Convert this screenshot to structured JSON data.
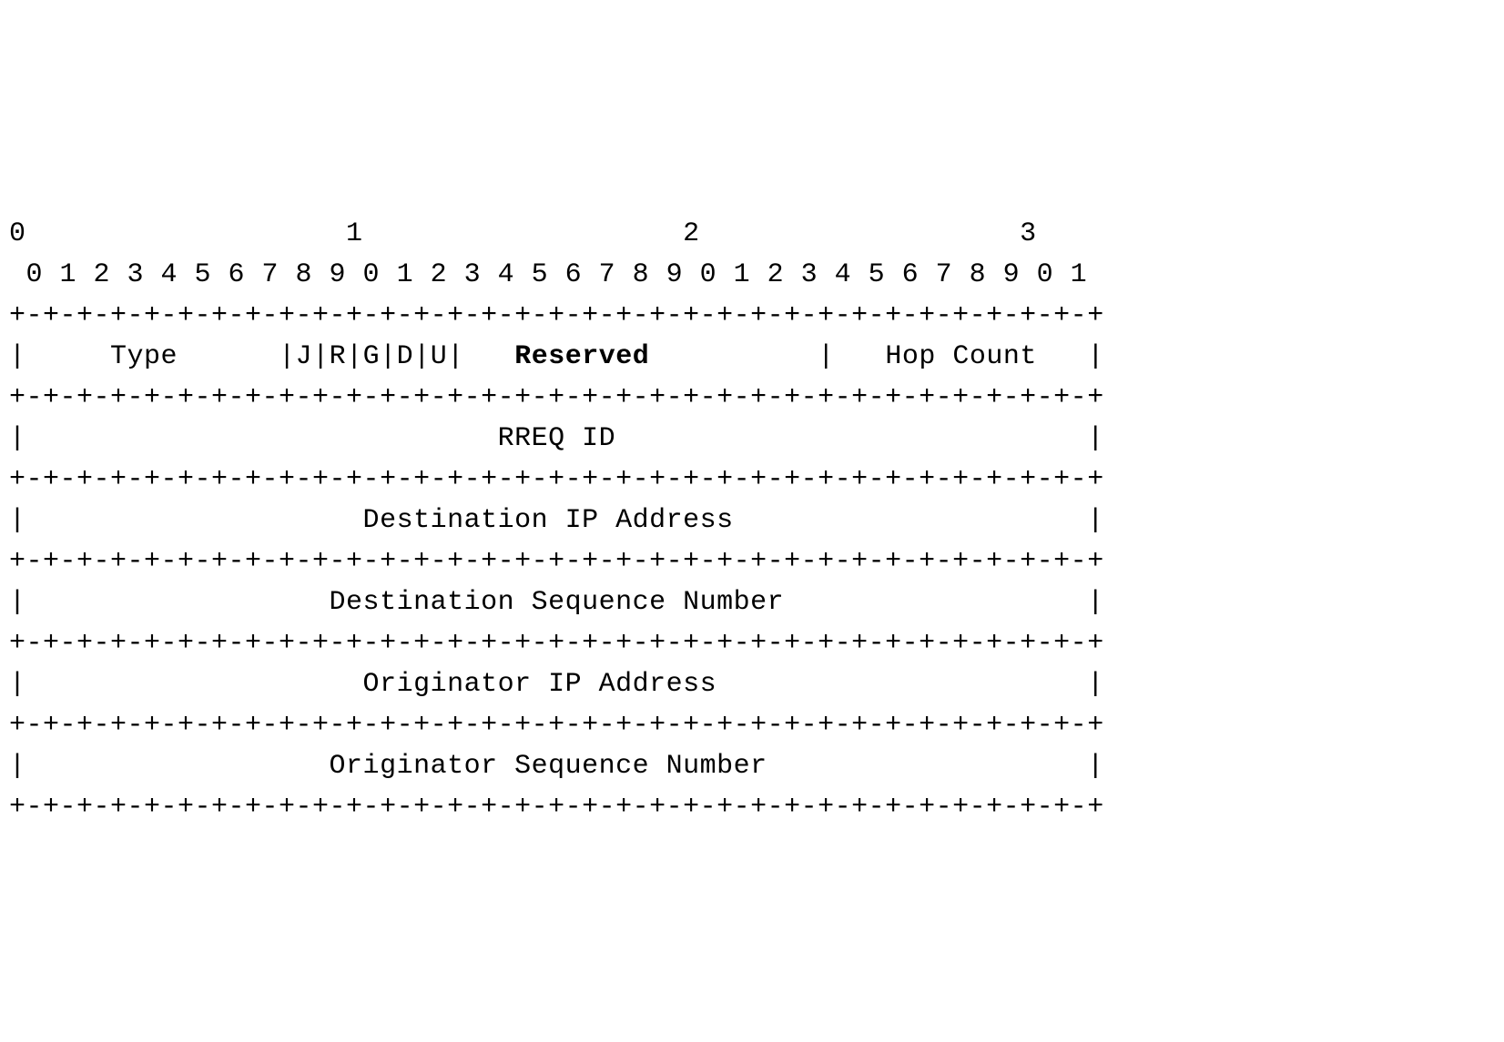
{
  "diagram": {
    "type": "ascii-packet-format",
    "font_family": "Courier New, monospace",
    "font_size": 30,
    "text_color": "#000000",
    "background_color": "#ffffff",
    "header_tens": {
      "positions": [
        0,
        10,
        20,
        30
      ],
      "labels": [
        "0",
        "1",
        "2",
        "3"
      ]
    },
    "header_units": "0 1 2 3 4 5 6 7 8 9 0 1 2 3 4 5 6 7 8 9 0 1 2 3 4 5 6 7 8 9 0 1",
    "border": "+-+-+-+-+-+-+-+-+-+-+-+-+-+-+-+-+-+-+-+-+-+-+-+-+-+-+-+-+-+-+-+-+",
    "rows": [
      {
        "fields": [
          {
            "label": "Type",
            "bits": 8,
            "bold": false
          },
          {
            "label": "J",
            "bits": 1,
            "bold": false
          },
          {
            "label": "R",
            "bits": 1,
            "bold": false
          },
          {
            "label": "G",
            "bits": 1,
            "bold": false
          },
          {
            "label": "D",
            "bits": 1,
            "bold": false
          },
          {
            "label": "U",
            "bits": 1,
            "bold": false
          },
          {
            "label": "Reserved",
            "bits": 11,
            "bold": true
          },
          {
            "label": "Hop Count",
            "bits": 8,
            "bold": false
          }
        ]
      },
      {
        "fields": [
          {
            "label": "RREQ ID",
            "bits": 32,
            "bold": false
          }
        ]
      },
      {
        "fields": [
          {
            "label": "Destination IP Address",
            "bits": 32,
            "bold": false
          }
        ]
      },
      {
        "fields": [
          {
            "label": "Destination Sequence Number",
            "bits": 32,
            "bold": false
          }
        ]
      },
      {
        "fields": [
          {
            "label": "Originator IP Address",
            "bits": 32,
            "bold": false
          }
        ]
      },
      {
        "fields": [
          {
            "label": "Originator Sequence Number",
            "bits": 32,
            "bold": false
          }
        ]
      }
    ],
    "row1_text": "|     Type      |J|R|G|D|U|   Reserved          |   Hop Count   |",
    "row1_bold_part": "Reserved",
    "row2_text": "|                            RREQ ID                            |",
    "row3_text": "|                    Destination IP Address                     |",
    "row4_text": "|                  Destination Sequence Number                  |",
    "row5_text": "|                    Originator IP Address                      |",
    "row6_text": "|                  Originator Sequence Number                   |",
    "tens_line": "0                   1                   2                   3",
    "units_line": " 0 1 2 3 4 5 6 7 8 9 0 1 2 3 4 5 6 7 8 9 0 1 2 3 4 5 6 7 8 9 0 1"
  }
}
